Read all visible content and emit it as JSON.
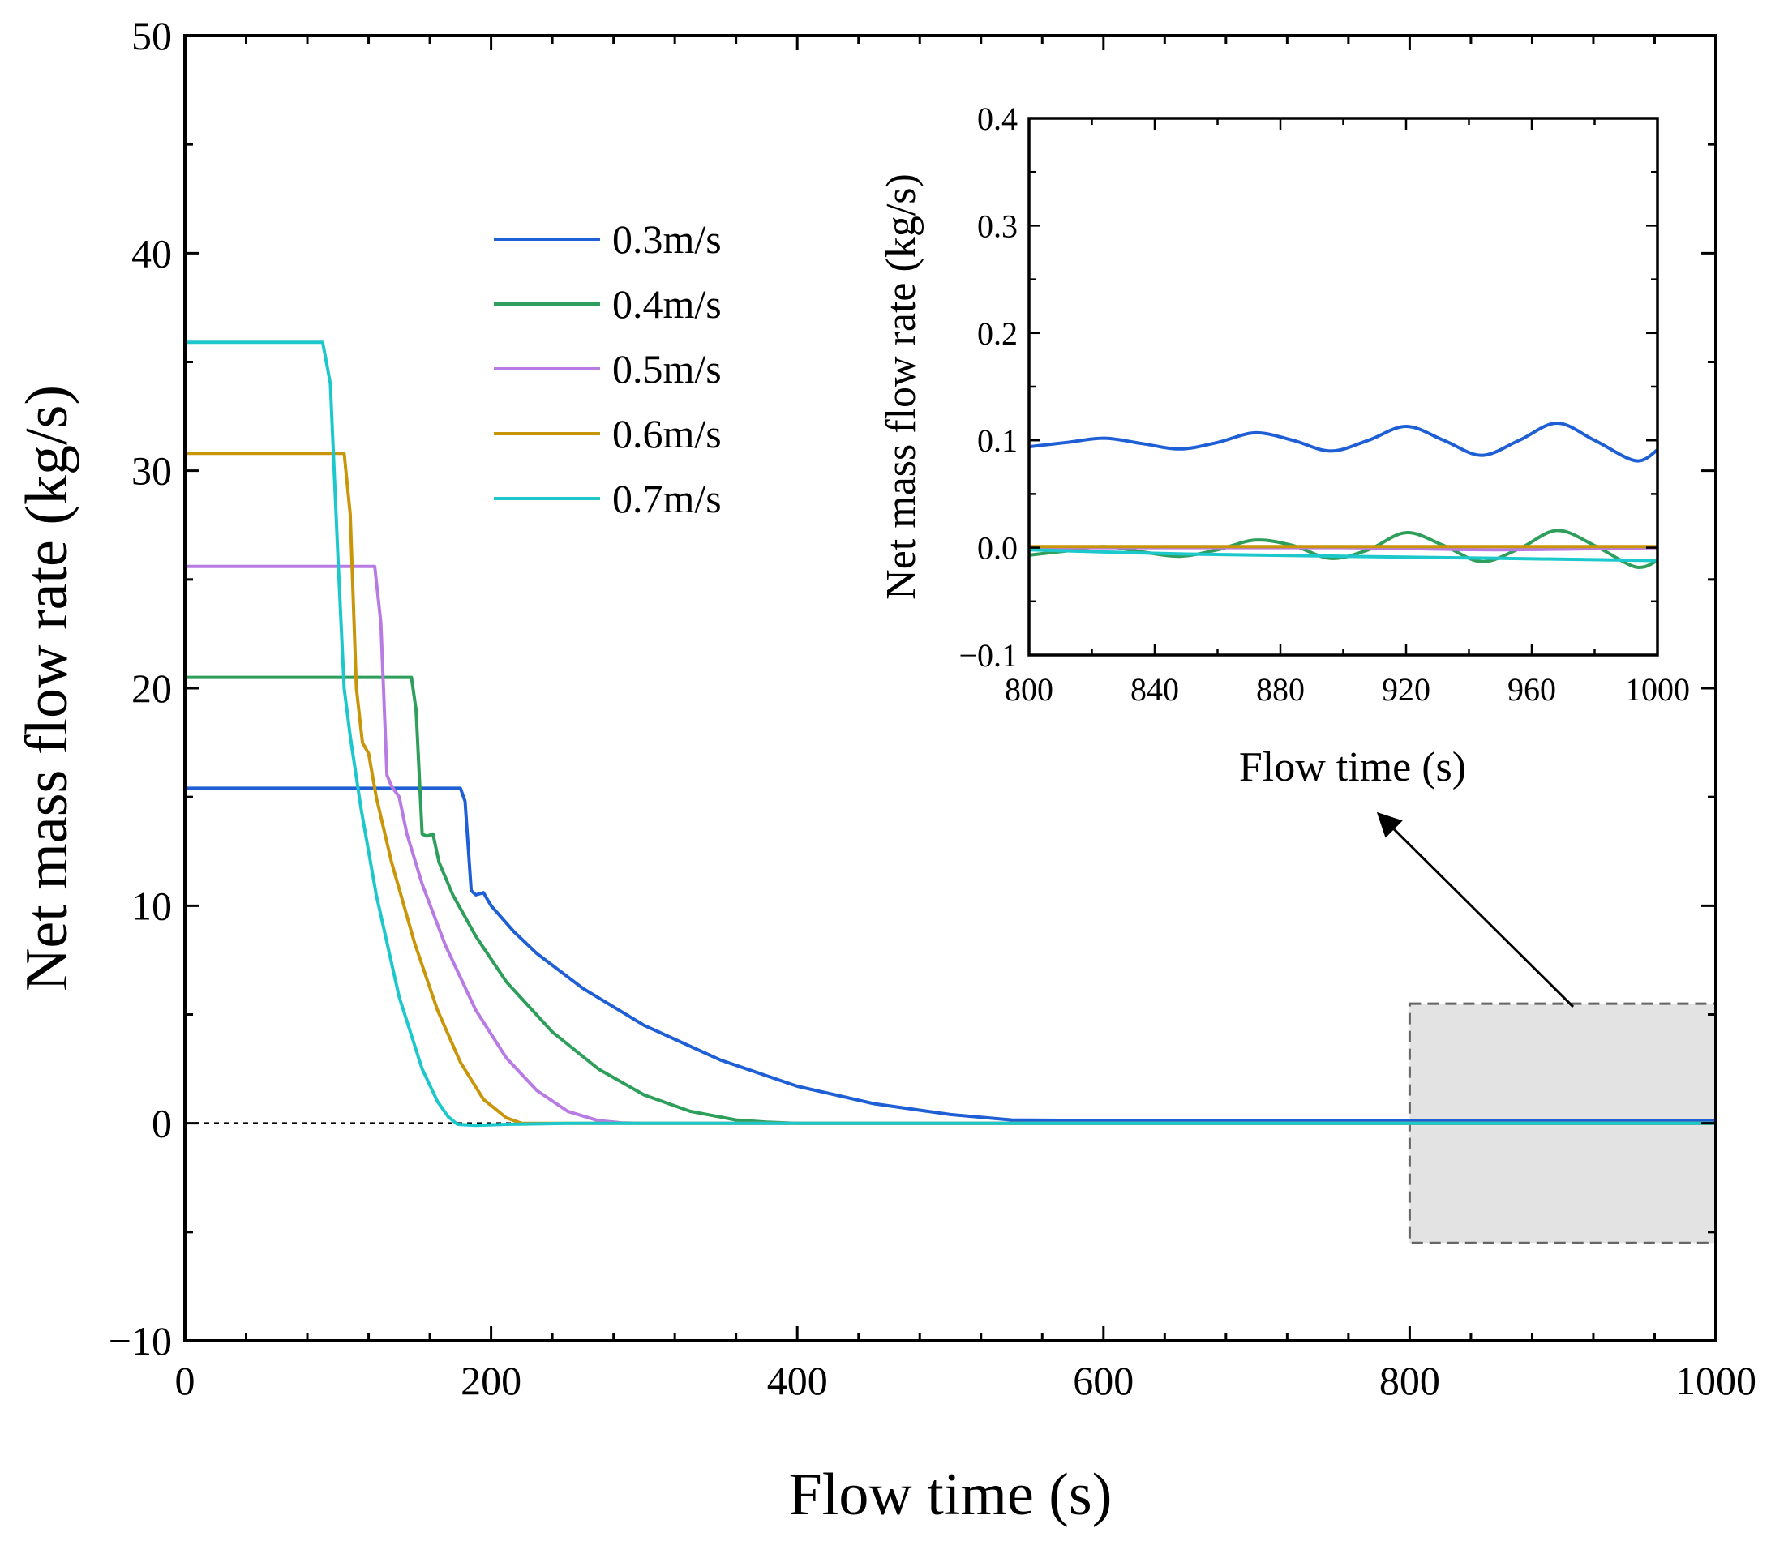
{
  "chart_data": [
    {
      "id": "main",
      "type": "line",
      "xlabel": "Flow time (s)",
      "ylabel": "Net mass flow rate (kg/s)",
      "xlim": [
        0,
        1000
      ],
      "ylim": [
        -10,
        50
      ],
      "xticks": [
        0,
        200,
        400,
        600,
        800,
        1000
      ],
      "yticks": [
        -10,
        0,
        10,
        20,
        30,
        40,
        50
      ],
      "xtick_labels": [
        "0",
        "200",
        "400",
        "600",
        "800",
        "1000"
      ],
      "ytick_labels": [
        "−10",
        "0",
        "10",
        "20",
        "30",
        "40",
        "50"
      ],
      "zero_line": true,
      "legend_position": "upper-center",
      "highlight_region": {
        "x": [
          800,
          1000
        ],
        "y": [
          -5.5,
          5.5
        ]
      },
      "series": [
        {
          "name": "0.3m/s",
          "color": "#1f5fd6",
          "x": [
            0,
            180,
            183,
            187,
            190,
            195,
            200,
            215,
            230,
            260,
            300,
            350,
            400,
            450,
            500,
            540,
            600,
            700,
            800,
            900,
            1000
          ],
          "y": [
            15.4,
            15.4,
            14.8,
            10.7,
            10.5,
            10.6,
            10.0,
            8.8,
            7.8,
            6.2,
            4.5,
            2.9,
            1.7,
            0.9,
            0.4,
            0.15,
            0.12,
            0.1,
            0.1,
            0.1,
            0.1
          ]
        },
        {
          "name": "0.4m/s",
          "color": "#2e9e5b",
          "x": [
            0,
            148,
            151,
            155,
            158,
            162,
            166,
            175,
            190,
            210,
            240,
            270,
            300,
            330,
            360,
            380,
            400,
            500,
            800,
            1000
          ],
          "y": [
            20.5,
            20.5,
            19.0,
            13.3,
            13.2,
            13.3,
            12.0,
            10.5,
            8.6,
            6.5,
            4.2,
            2.5,
            1.3,
            0.55,
            0.15,
            0.05,
            0.0,
            0.0,
            0.0,
            0.0
          ]
        },
        {
          "name": "0.5m/s",
          "color": "#b87be3",
          "x": [
            0,
            124,
            128,
            132,
            135,
            140,
            145,
            155,
            170,
            190,
            210,
            230,
            250,
            270,
            285,
            300,
            1000
          ],
          "y": [
            25.6,
            25.6,
            23.0,
            16.0,
            15.5,
            15.0,
            13.3,
            11.0,
            8.2,
            5.2,
            3.0,
            1.5,
            0.55,
            0.12,
            0.02,
            0.0,
            0.0
          ]
        },
        {
          "name": "0.6m/s",
          "color": "#c9960a",
          "x": [
            0,
            104,
            108,
            112,
            116,
            120,
            125,
            135,
            150,
            165,
            180,
            195,
            210,
            220,
            230,
            1000
          ],
          "y": [
            30.8,
            30.8,
            28.0,
            20.0,
            17.5,
            17.0,
            15.0,
            12.0,
            8.3,
            5.2,
            2.8,
            1.1,
            0.25,
            0.0,
            0.0,
            0.0
          ]
        },
        {
          "name": "0.7m/s",
          "color": "#1cc8cc",
          "x": [
            0,
            90,
            95,
            100,
            104,
            108,
            115,
            125,
            140,
            155,
            165,
            172,
            178,
            190,
            210,
            250,
            1000
          ],
          "y": [
            35.9,
            35.9,
            34.0,
            26.0,
            20.0,
            17.8,
            14.5,
            10.5,
            5.8,
            2.5,
            1.0,
            0.3,
            -0.05,
            -0.1,
            -0.05,
            0.0,
            0.0
          ]
        }
      ]
    },
    {
      "id": "inset",
      "type": "line",
      "xlabel": "Flow time (s)",
      "ylabel": "Net mass flow rate (kg/s)",
      "xlim": [
        800,
        1000
      ],
      "ylim": [
        -0.1,
        0.4
      ],
      "xticks": [
        800,
        840,
        880,
        920,
        960,
        1000
      ],
      "yticks": [
        -0.1,
        0.0,
        0.1,
        0.2,
        0.3,
        0.4
      ],
      "xtick_labels": [
        "800",
        "840",
        "880",
        "920",
        "960",
        "1000"
      ],
      "ytick_labels": [
        "−0.1",
        "0.0",
        "0.1",
        "0.2",
        "0.3",
        "0.4"
      ],
      "series": [
        {
          "name": "0.3m/s",
          "color": "#1f5fd6",
          "x": [
            800,
            812,
            824,
            836,
            848,
            860,
            872,
            884,
            896,
            908,
            920,
            932,
            944,
            956,
            968,
            980,
            993,
            1000
          ],
          "y": [
            0.094,
            0.098,
            0.102,
            0.097,
            0.092,
            0.098,
            0.107,
            0.1,
            0.09,
            0.1,
            0.113,
            0.1,
            0.086,
            0.1,
            0.116,
            0.1,
            0.081,
            0.091
          ]
        },
        {
          "name": "0.4m/s",
          "color": "#2e9e5b",
          "x": [
            800,
            812,
            824,
            836,
            848,
            860,
            872,
            884,
            896,
            908,
            920,
            932,
            944,
            956,
            968,
            980,
            993,
            1000
          ],
          "y": [
            -0.007,
            -0.003,
            0.001,
            -0.004,
            -0.008,
            -0.002,
            0.007,
            0.002,
            -0.01,
            -0.002,
            0.014,
            0.002,
            -0.013,
            -0.001,
            0.016,
            0.002,
            -0.018,
            -0.012
          ]
        },
        {
          "name": "0.5m/s",
          "color": "#b87be3",
          "x": [
            800,
            850,
            900,
            950,
            1000
          ],
          "y": [
            0.0,
            0.0,
            0.0,
            -0.002,
            0.0
          ]
        },
        {
          "name": "0.6m/s",
          "color": "#c9960a",
          "x": [
            800,
            900,
            1000
          ],
          "y": [
            0.001,
            0.001,
            0.001
          ]
        },
        {
          "name": "0.7m/s",
          "color": "#1cc8cc",
          "x": [
            800,
            850,
            900,
            950,
            1000
          ],
          "y": [
            -0.002,
            -0.006,
            -0.008,
            -0.01,
            -0.012
          ]
        }
      ]
    }
  ]
}
